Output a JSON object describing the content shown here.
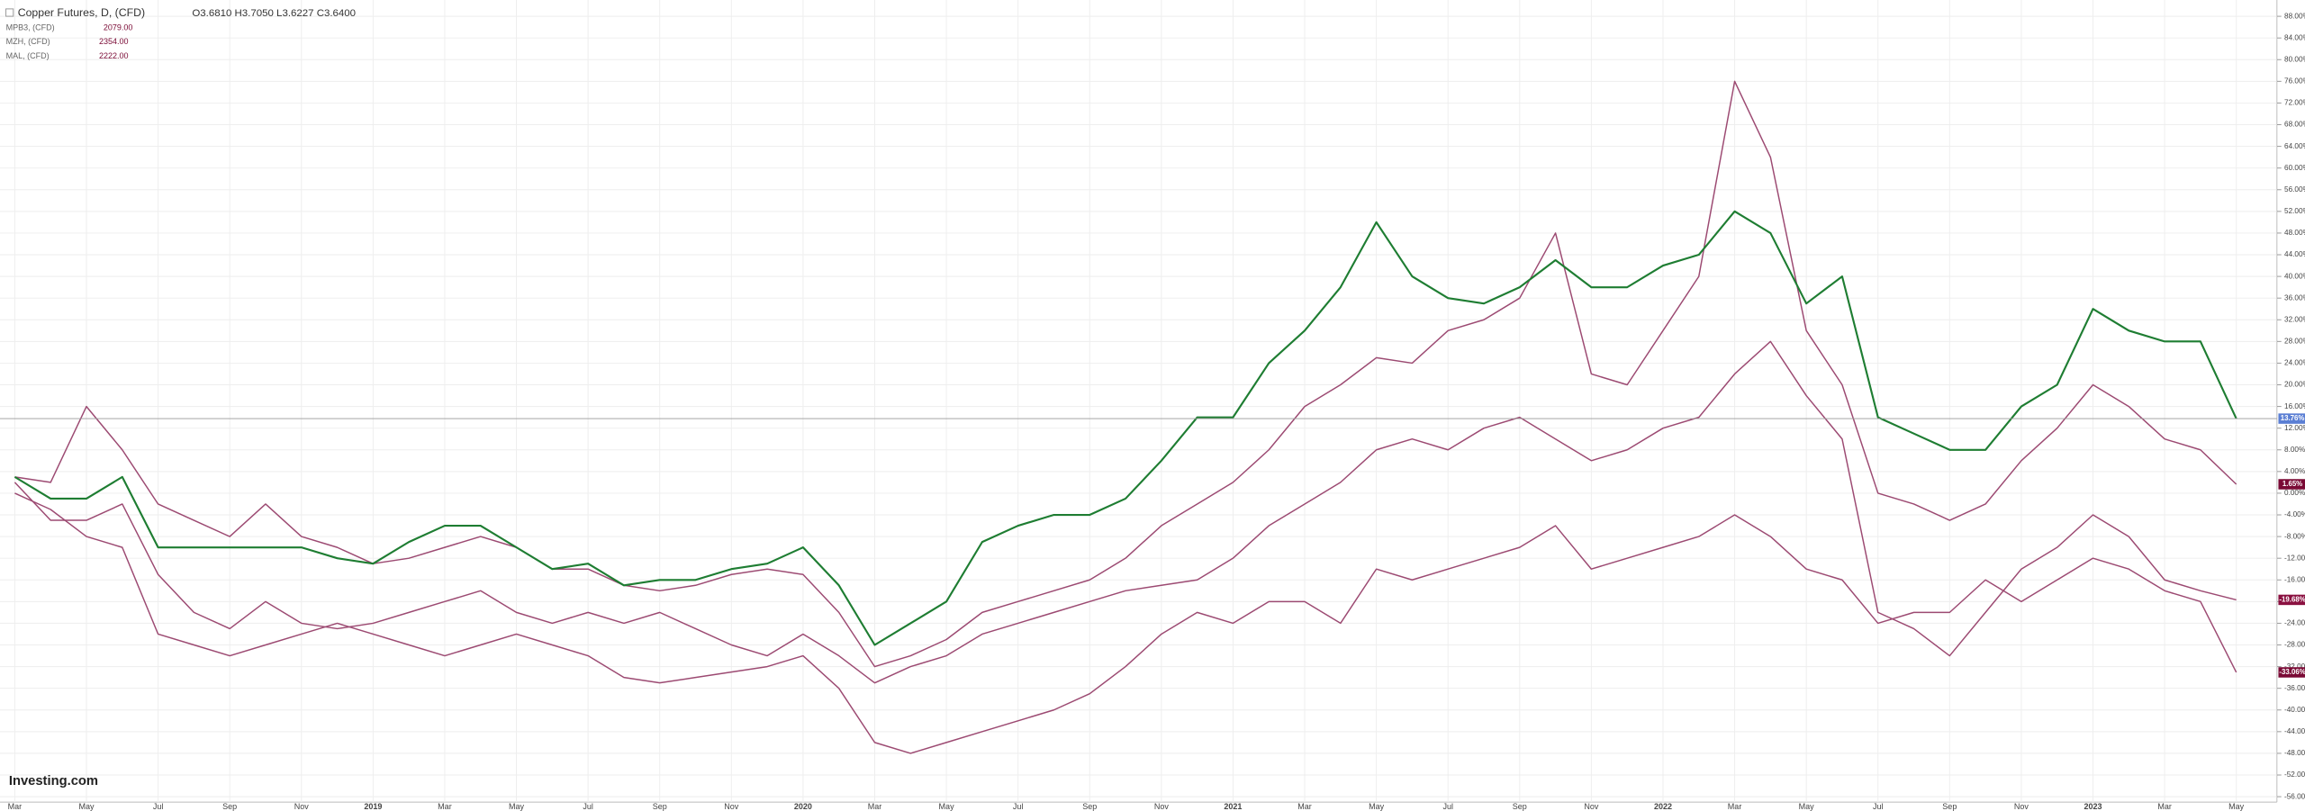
{
  "chart_data": {
    "type": "line",
    "legend": [
      {
        "name": "Copper Futures, D, (CFD)",
        "ohlc": "O3.6810 H3.7050 L3.6227 C3.6400"
      },
      {
        "name": "MPB3, (CFD)",
        "price": "2079.00"
      },
      {
        "name": "MZH, (CFD)",
        "price": "2354.00"
      },
      {
        "name": "MAL, (CFD)",
        "price": "2222.00"
      }
    ],
    "logo": "Investing.com",
    "categories": [
      "Mar",
      null,
      "May",
      null,
      "Jul",
      null,
      "Sep",
      null,
      "Nov",
      null,
      "2019",
      null,
      "Mar",
      null,
      "May",
      null,
      "Jul",
      null,
      "Sep",
      null,
      "Nov",
      null,
      "2020",
      null,
      "Mar",
      null,
      "May",
      null,
      "Jul",
      null,
      "Sep",
      null,
      "Nov",
      null,
      "2021",
      null,
      "Mar",
      null,
      "May",
      null,
      "Jul",
      null,
      "Sep",
      null,
      "Nov",
      null,
      "2022",
      null,
      "Mar",
      null,
      "May",
      null,
      "Jul",
      null,
      "Sep",
      null,
      "Nov",
      null,
      "2023",
      null,
      "Mar",
      null,
      "May"
    ],
    "series": [
      {
        "name": "Copper Futures",
        "color": "#1e7d32",
        "last_label": "13.76%",
        "label_color": "#5b7fd4",
        "values": [
          3,
          -1,
          -1,
          3,
          -10,
          -10,
          -10,
          -10,
          -10,
          -12,
          -13,
          -9,
          -6,
          -6,
          -10,
          -14,
          -13,
          -17,
          -16,
          -16,
          -14,
          -13,
          -10,
          -17,
          -28,
          -24,
          -20,
          -9,
          -6,
          -4,
          -4,
          -1,
          6,
          14,
          14,
          24,
          30,
          38,
          50,
          40,
          36,
          35,
          38,
          43,
          38,
          38,
          42,
          44,
          52,
          48,
          35,
          40,
          14,
          11,
          8,
          8,
          16,
          20,
          34,
          30,
          28,
          28,
          13.76
        ]
      },
      {
        "name": "MPB3",
        "color": "#9c4a72",
        "last_label": "1.65%",
        "label_color": "#7a0a35",
        "values": [
          3,
          2,
          16,
          8,
          -2,
          -5,
          -8,
          -2,
          -8,
          -10,
          -13,
          -12,
          -10,
          -8,
          -10,
          -14,
          -14,
          -17,
          -18,
          -17,
          -15,
          -14,
          -15,
          -22,
          -32,
          -30,
          -27,
          -22,
          -20,
          -18,
          -16,
          -12,
          -6,
          -2,
          2,
          8,
          16,
          20,
          25,
          24,
          30,
          32,
          36,
          48,
          22,
          20,
          30,
          40,
          76,
          62,
          30,
          20,
          0,
          -2,
          -5,
          -2,
          6,
          12,
          20,
          16,
          10,
          8,
          1.65
        ]
      },
      {
        "name": "MZH",
        "color": "#9c4a72",
        "last_label": "-19.68%",
        "label_color": "#8a1040",
        "values": [
          2,
          -5,
          -5,
          -2,
          -15,
          -22,
          -25,
          -20,
          -24,
          -25,
          -24,
          -22,
          -20,
          -18,
          -22,
          -24,
          -22,
          -24,
          -22,
          -25,
          -28,
          -30,
          -26,
          -30,
          -35,
          -32,
          -30,
          -26,
          -24,
          -22,
          -20,
          -18,
          -17,
          -16,
          -12,
          -6,
          -2,
          2,
          8,
          10,
          8,
          12,
          14,
          10,
          6,
          8,
          12,
          14,
          22,
          28,
          18,
          10,
          -22,
          -25,
          -30,
          -22,
          -14,
          -10,
          -4,
          -8,
          -16,
          -18,
          -19.68
        ]
      },
      {
        "name": "MAL",
        "color": "#9c4a72",
        "last_label": "-33.06%",
        "label_color": "#7a0a35",
        "values": [
          0,
          -3,
          -8,
          -10,
          -26,
          -28,
          -30,
          -28,
          -26,
          -24,
          -26,
          -28,
          -30,
          -28,
          -26,
          -28,
          -30,
          -34,
          -35,
          -34,
          -33,
          -32,
          -30,
          -36,
          -46,
          -48,
          -46,
          -44,
          -42,
          -40,
          -37,
          -32,
          -26,
          -22,
          -24,
          -20,
          -20,
          -24,
          -14,
          -16,
          -14,
          -12,
          -10,
          -6,
          -14,
          -12,
          -10,
          -8,
          -4,
          -8,
          -14,
          -16,
          -24,
          -22,
          -22,
          -16,
          -20,
          -16,
          -12,
          -14,
          -18,
          -20,
          -33.06
        ]
      }
    ],
    "ylim": [
      -57,
      91
    ],
    "yticks": [
      {
        "value": 88,
        "label": "88.00%"
      },
      {
        "value": 84,
        "label": "84.00%"
      },
      {
        "value": 80,
        "label": "80.00%"
      },
      {
        "value": 76,
        "label": "76.00%"
      },
      {
        "value": 72,
        "label": "72.00%"
      },
      {
        "value": 68,
        "label": "68.00%"
      },
      {
        "value": 64,
        "label": "64.00%"
      },
      {
        "value": 60,
        "label": "60.00%"
      },
      {
        "value": 56,
        "label": "56.00%"
      },
      {
        "value": 52,
        "label": "52.00%"
      },
      {
        "value": 48,
        "label": "48.00%"
      },
      {
        "value": 44,
        "label": "44.00%"
      },
      {
        "value": 40,
        "label": "40.00%"
      },
      {
        "value": 36,
        "label": "36.00%"
      },
      {
        "value": 32,
        "label": "32.00%"
      },
      {
        "value": 28,
        "label": "28.00%"
      },
      {
        "value": 24,
        "label": "24.00%"
      },
      {
        "value": 20,
        "label": "20.00%"
      },
      {
        "value": 16,
        "label": "16.00%"
      },
      {
        "value": 12,
        "label": "12.00%"
      },
      {
        "value": 8,
        "label": "8.00%"
      },
      {
        "value": 4,
        "label": "4.00%"
      },
      {
        "value": 0,
        "label": "0.00%"
      },
      {
        "value": -4,
        "label": "-4.00%"
      },
      {
        "value": -8,
        "label": "-8.00%"
      },
      {
        "value": -12,
        "label": "-12.00%"
      },
      {
        "value": -16,
        "label": "-16.00%"
      },
      {
        "value": -20,
        "label": "-20.00%"
      },
      {
        "value": -24,
        "label": "-24.00%"
      },
      {
        "value": -28,
        "label": "-28.00%"
      },
      {
        "value": -32,
        "label": "-32.00%"
      },
      {
        "value": -36,
        "label": "-36.00%"
      },
      {
        "value": -40,
        "label": "-40.00%"
      },
      {
        "value": -44,
        "label": "-44.00%"
      },
      {
        "value": -48,
        "label": "-48.00%"
      },
      {
        "value": -52,
        "label": "-52.00%"
      },
      {
        "value": -56,
        "label": "-56.00%"
      }
    ],
    "grid": true
  }
}
